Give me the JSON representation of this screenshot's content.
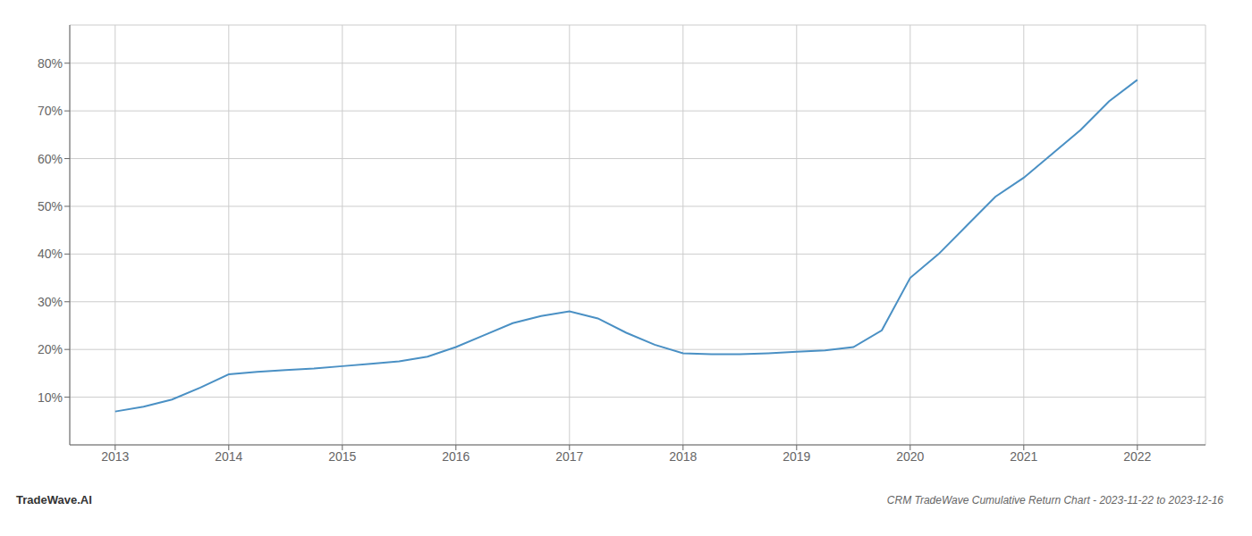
{
  "chart_data": {
    "type": "line",
    "title": "CRM TradeWave Cumulative Return Chart - 2023-11-22 to 2023-12-16",
    "annotations": [
      "TradeWave.AI"
    ],
    "x": [
      2013.0,
      2013.25,
      2013.5,
      2013.75,
      2014.0,
      2014.25,
      2014.5,
      2014.75,
      2015.0,
      2015.25,
      2015.5,
      2015.75,
      2016.0,
      2016.25,
      2016.5,
      2016.75,
      2017.0,
      2017.25,
      2017.5,
      2017.75,
      2018.0,
      2018.25,
      2018.5,
      2018.75,
      2019.0,
      2019.25,
      2019.5,
      2019.75,
      2020.0,
      2020.25,
      2020.5,
      2020.75,
      2021.0,
      2021.25,
      2021.5,
      2021.75,
      2022.0
    ],
    "values": [
      7.0,
      8.0,
      9.5,
      12.0,
      14.8,
      15.3,
      15.7,
      16.0,
      16.5,
      17.0,
      17.5,
      18.5,
      20.5,
      23.0,
      25.5,
      27.0,
      28.0,
      26.5,
      23.5,
      21.0,
      19.2,
      19.0,
      19.0,
      19.2,
      19.5,
      19.8,
      20.5,
      24.0,
      35.0,
      40.0,
      46.0,
      52.0,
      56.0,
      61.0,
      66.0,
      72.0,
      76.5
    ],
    "color": "#4a90c4",
    "xlim": [
      2012.6,
      2022.6
    ],
    "xticks": [
      2013,
      2014,
      2015,
      2016,
      2017,
      2018,
      2019,
      2020,
      2021,
      2022
    ],
    "ylim": [
      0,
      88
    ],
    "yticks": [
      {
        "value": 10,
        "label": "10%"
      },
      {
        "value": 20,
        "label": "20%"
      },
      {
        "value": 30,
        "label": "30%"
      },
      {
        "value": 40,
        "label": "40%"
      },
      {
        "value": 50,
        "label": "50%"
      },
      {
        "value": 60,
        "label": "60%"
      },
      {
        "value": 70,
        "label": "70%"
      },
      {
        "value": 80,
        "label": "80%"
      }
    ],
    "grid": true
  }
}
